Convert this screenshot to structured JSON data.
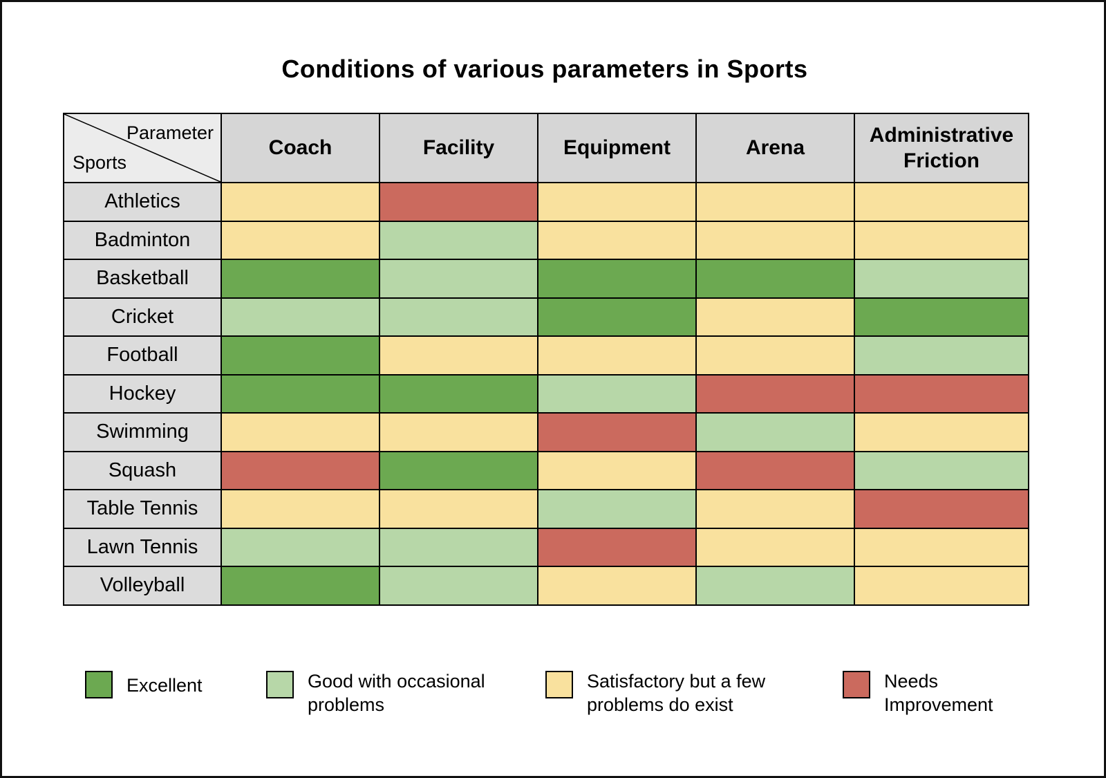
{
  "corner": {
    "top": "Parameter",
    "bottom": "Sports"
  },
  "chart_data": {
    "type": "heatmap",
    "title": "Conditions of various parameters in Sports",
    "columns": [
      "Coach",
      "Facility",
      "Equipment",
      "Arena",
      "Administrative Friction"
    ],
    "rows": [
      "Athletics",
      "Badminton",
      "Basketball",
      "Cricket",
      "Football",
      "Hockey",
      "Swimming",
      "Squash",
      "Table Tennis",
      "Lawn Tennis",
      "Volleyball"
    ],
    "values": [
      [
        "satisfactory",
        "needs_improvement",
        "satisfactory",
        "satisfactory",
        "satisfactory"
      ],
      [
        "satisfactory",
        "good",
        "satisfactory",
        "satisfactory",
        "satisfactory"
      ],
      [
        "excellent",
        "good",
        "excellent",
        "excellent",
        "good"
      ],
      [
        "good",
        "good",
        "excellent",
        "satisfactory",
        "excellent"
      ],
      [
        "excellent",
        "satisfactory",
        "satisfactory",
        "satisfactory",
        "good"
      ],
      [
        "excellent",
        "excellent",
        "good",
        "needs_improvement",
        "needs_improvement"
      ],
      [
        "satisfactory",
        "satisfactory",
        "needs_improvement",
        "good",
        "satisfactory"
      ],
      [
        "needs_improvement",
        "excellent",
        "satisfactory",
        "needs_improvement",
        "good"
      ],
      [
        "satisfactory",
        "satisfactory",
        "good",
        "satisfactory",
        "needs_improvement"
      ],
      [
        "good",
        "good",
        "needs_improvement",
        "satisfactory",
        "satisfactory"
      ],
      [
        "excellent",
        "good",
        "satisfactory",
        "good",
        "satisfactory"
      ]
    ],
    "legend": [
      {
        "key": "excellent",
        "label": "Excellent",
        "color": "#6ca951"
      },
      {
        "key": "good",
        "label": "Good with occasional problems",
        "color": "#b7d7a8"
      },
      {
        "key": "satisfactory",
        "label": "Satisfactory but a few problems do exist",
        "color": "#f9e19e"
      },
      {
        "key": "needs_improvement",
        "label": "Needs Improvement",
        "color": "#cb6a5e"
      }
    ],
    "legend_position": "bottom",
    "grid": true
  }
}
